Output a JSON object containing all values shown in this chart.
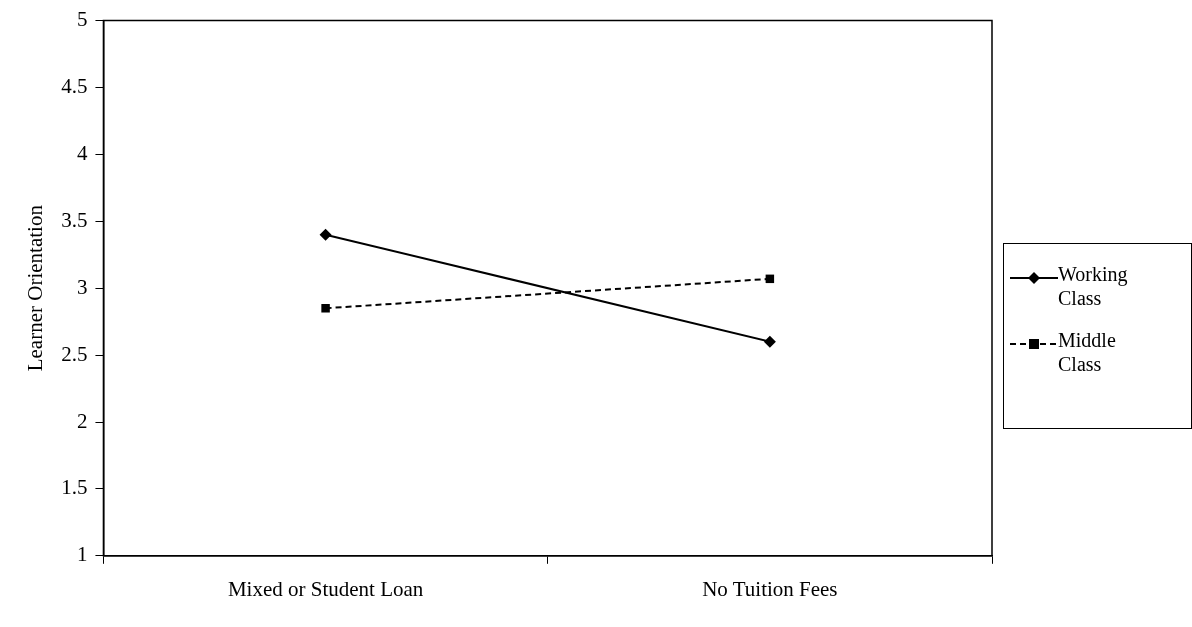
{
  "chart_data": {
    "type": "line",
    "ylabel": "Learner Orientation",
    "categories": [
      "Mixed or Student Loan",
      "No Tuition Fees"
    ],
    "series": [
      {
        "name": "Working Class",
        "color": "#000000",
        "values": [
          3.4,
          2.6
        ],
        "marker": "diamond",
        "line_style": "solid"
      },
      {
        "name": "Middle Class",
        "color": "#000000",
        "values": [
          2.85,
          3.07
        ],
        "marker": "square",
        "line_style": "dashed"
      }
    ],
    "ylim": [
      1,
      5
    ],
    "yticks": [
      1,
      1.5,
      2,
      2.5,
      3,
      3.5,
      4,
      4.5,
      5
    ],
    "grid": false,
    "legend": "right"
  }
}
